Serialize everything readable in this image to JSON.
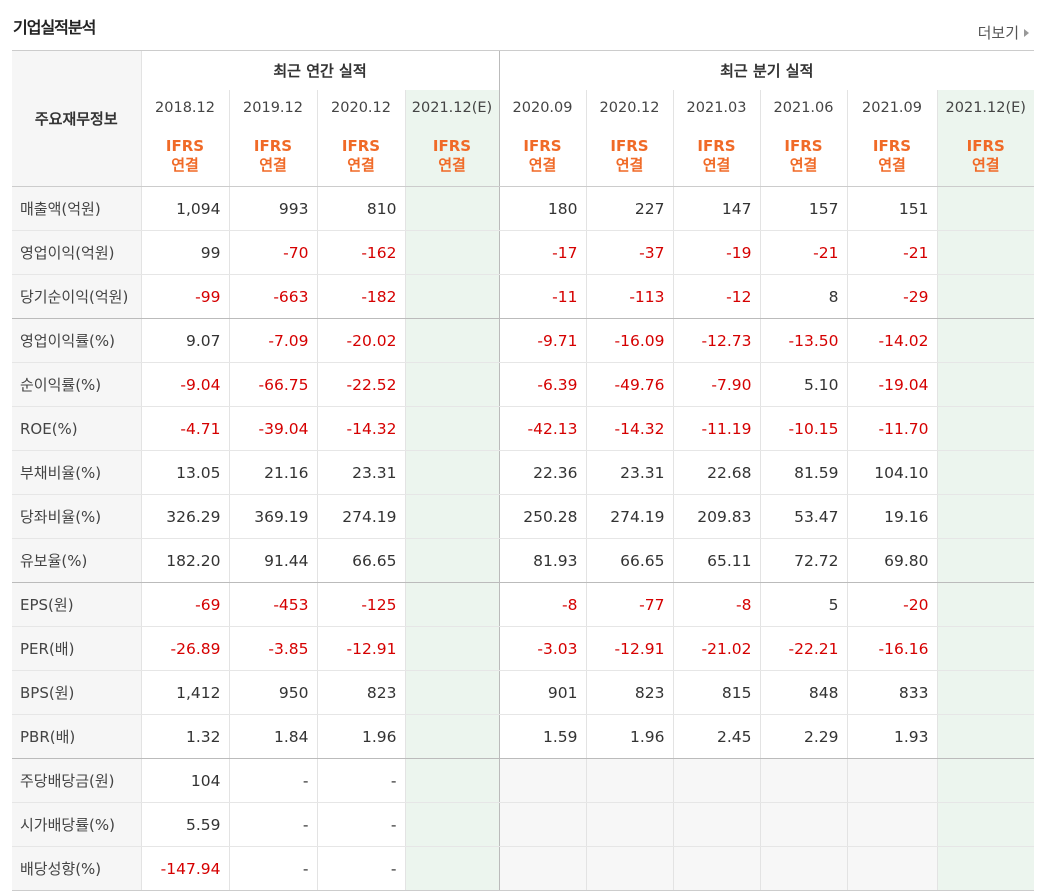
{
  "header": {
    "title": "기업실적분석",
    "more_label": "더보기"
  },
  "table": {
    "label_header": "주요재무정보",
    "group_annual": "최근 연간 실적",
    "group_quarter": "최근 분기 실적",
    "annual_periods": [
      "2018.12",
      "2019.12",
      "2020.12",
      "2021.12(E)"
    ],
    "quarter_periods": [
      "2020.09",
      "2020.12",
      "2021.03",
      "2021.06",
      "2021.09",
      "2021.12(E)"
    ],
    "ifrs_line1": "IFRS",
    "ifrs_line2": "연결",
    "rows": [
      {
        "label": "매출액(억원)",
        "values": [
          "1,094",
          "993",
          "810",
          "",
          "180",
          "227",
          "147",
          "157",
          "151",
          ""
        ]
      },
      {
        "label": "영업이익(억원)",
        "values": [
          "99",
          "-70",
          "-162",
          "",
          "-17",
          "-37",
          "-19",
          "-21",
          "-21",
          ""
        ]
      },
      {
        "label": "당기순이익(억원)",
        "values": [
          "-99",
          "-663",
          "-182",
          "",
          "-11",
          "-113",
          "-12",
          "8",
          "-29",
          ""
        ]
      },
      {
        "label": "영업이익률(%)",
        "values": [
          "9.07",
          "-7.09",
          "-20.02",
          "",
          "-9.71",
          "-16.09",
          "-12.73",
          "-13.50",
          "-14.02",
          ""
        ]
      },
      {
        "label": "순이익률(%)",
        "values": [
          "-9.04",
          "-66.75",
          "-22.52",
          "",
          "-6.39",
          "-49.76",
          "-7.90",
          "5.10",
          "-19.04",
          ""
        ]
      },
      {
        "label": "ROE(%)",
        "values": [
          "-4.71",
          "-39.04",
          "-14.32",
          "",
          "-42.13",
          "-14.32",
          "-11.19",
          "-10.15",
          "-11.70",
          ""
        ]
      },
      {
        "label": "부채비율(%)",
        "values": [
          "13.05",
          "21.16",
          "23.31",
          "",
          "22.36",
          "23.31",
          "22.68",
          "81.59",
          "104.10",
          ""
        ]
      },
      {
        "label": "당좌비율(%)",
        "values": [
          "326.29",
          "369.19",
          "274.19",
          "",
          "250.28",
          "274.19",
          "209.83",
          "53.47",
          "19.16",
          ""
        ]
      },
      {
        "label": "유보율(%)",
        "values": [
          "182.20",
          "91.44",
          "66.65",
          "",
          "81.93",
          "66.65",
          "65.11",
          "72.72",
          "69.80",
          ""
        ]
      },
      {
        "label": "EPS(원)",
        "values": [
          "-69",
          "-453",
          "-125",
          "",
          "-8",
          "-77",
          "-8",
          "5",
          "-20",
          ""
        ]
      },
      {
        "label": "PER(배)",
        "values": [
          "-26.89",
          "-3.85",
          "-12.91",
          "",
          "-3.03",
          "-12.91",
          "-21.02",
          "-22.21",
          "-16.16",
          ""
        ]
      },
      {
        "label": "BPS(원)",
        "values": [
          "1,412",
          "950",
          "823",
          "",
          "901",
          "823",
          "815",
          "848",
          "833",
          ""
        ]
      },
      {
        "label": "PBR(배)",
        "values": [
          "1.32",
          "1.84",
          "1.96",
          "",
          "1.59",
          "1.96",
          "2.45",
          "2.29",
          "1.93",
          ""
        ]
      },
      {
        "label": "주당배당금(원)",
        "values": [
          "104",
          "-",
          "-",
          "",
          "",
          "",
          "",
          "",
          "",
          ""
        ]
      },
      {
        "label": "시가배당률(%)",
        "values": [
          "5.59",
          "-",
          "-",
          "",
          "",
          "",
          "",
          "",
          "",
          ""
        ]
      },
      {
        "label": "배당성향(%)",
        "values": [
          "-147.94",
          "-",
          "-",
          "",
          "",
          "",
          "",
          "",
          "",
          ""
        ]
      }
    ],
    "colors": {
      "negative": "#d50000",
      "ifrs": "#f06a27",
      "estimate_bg": "#ecf5ee"
    }
  }
}
